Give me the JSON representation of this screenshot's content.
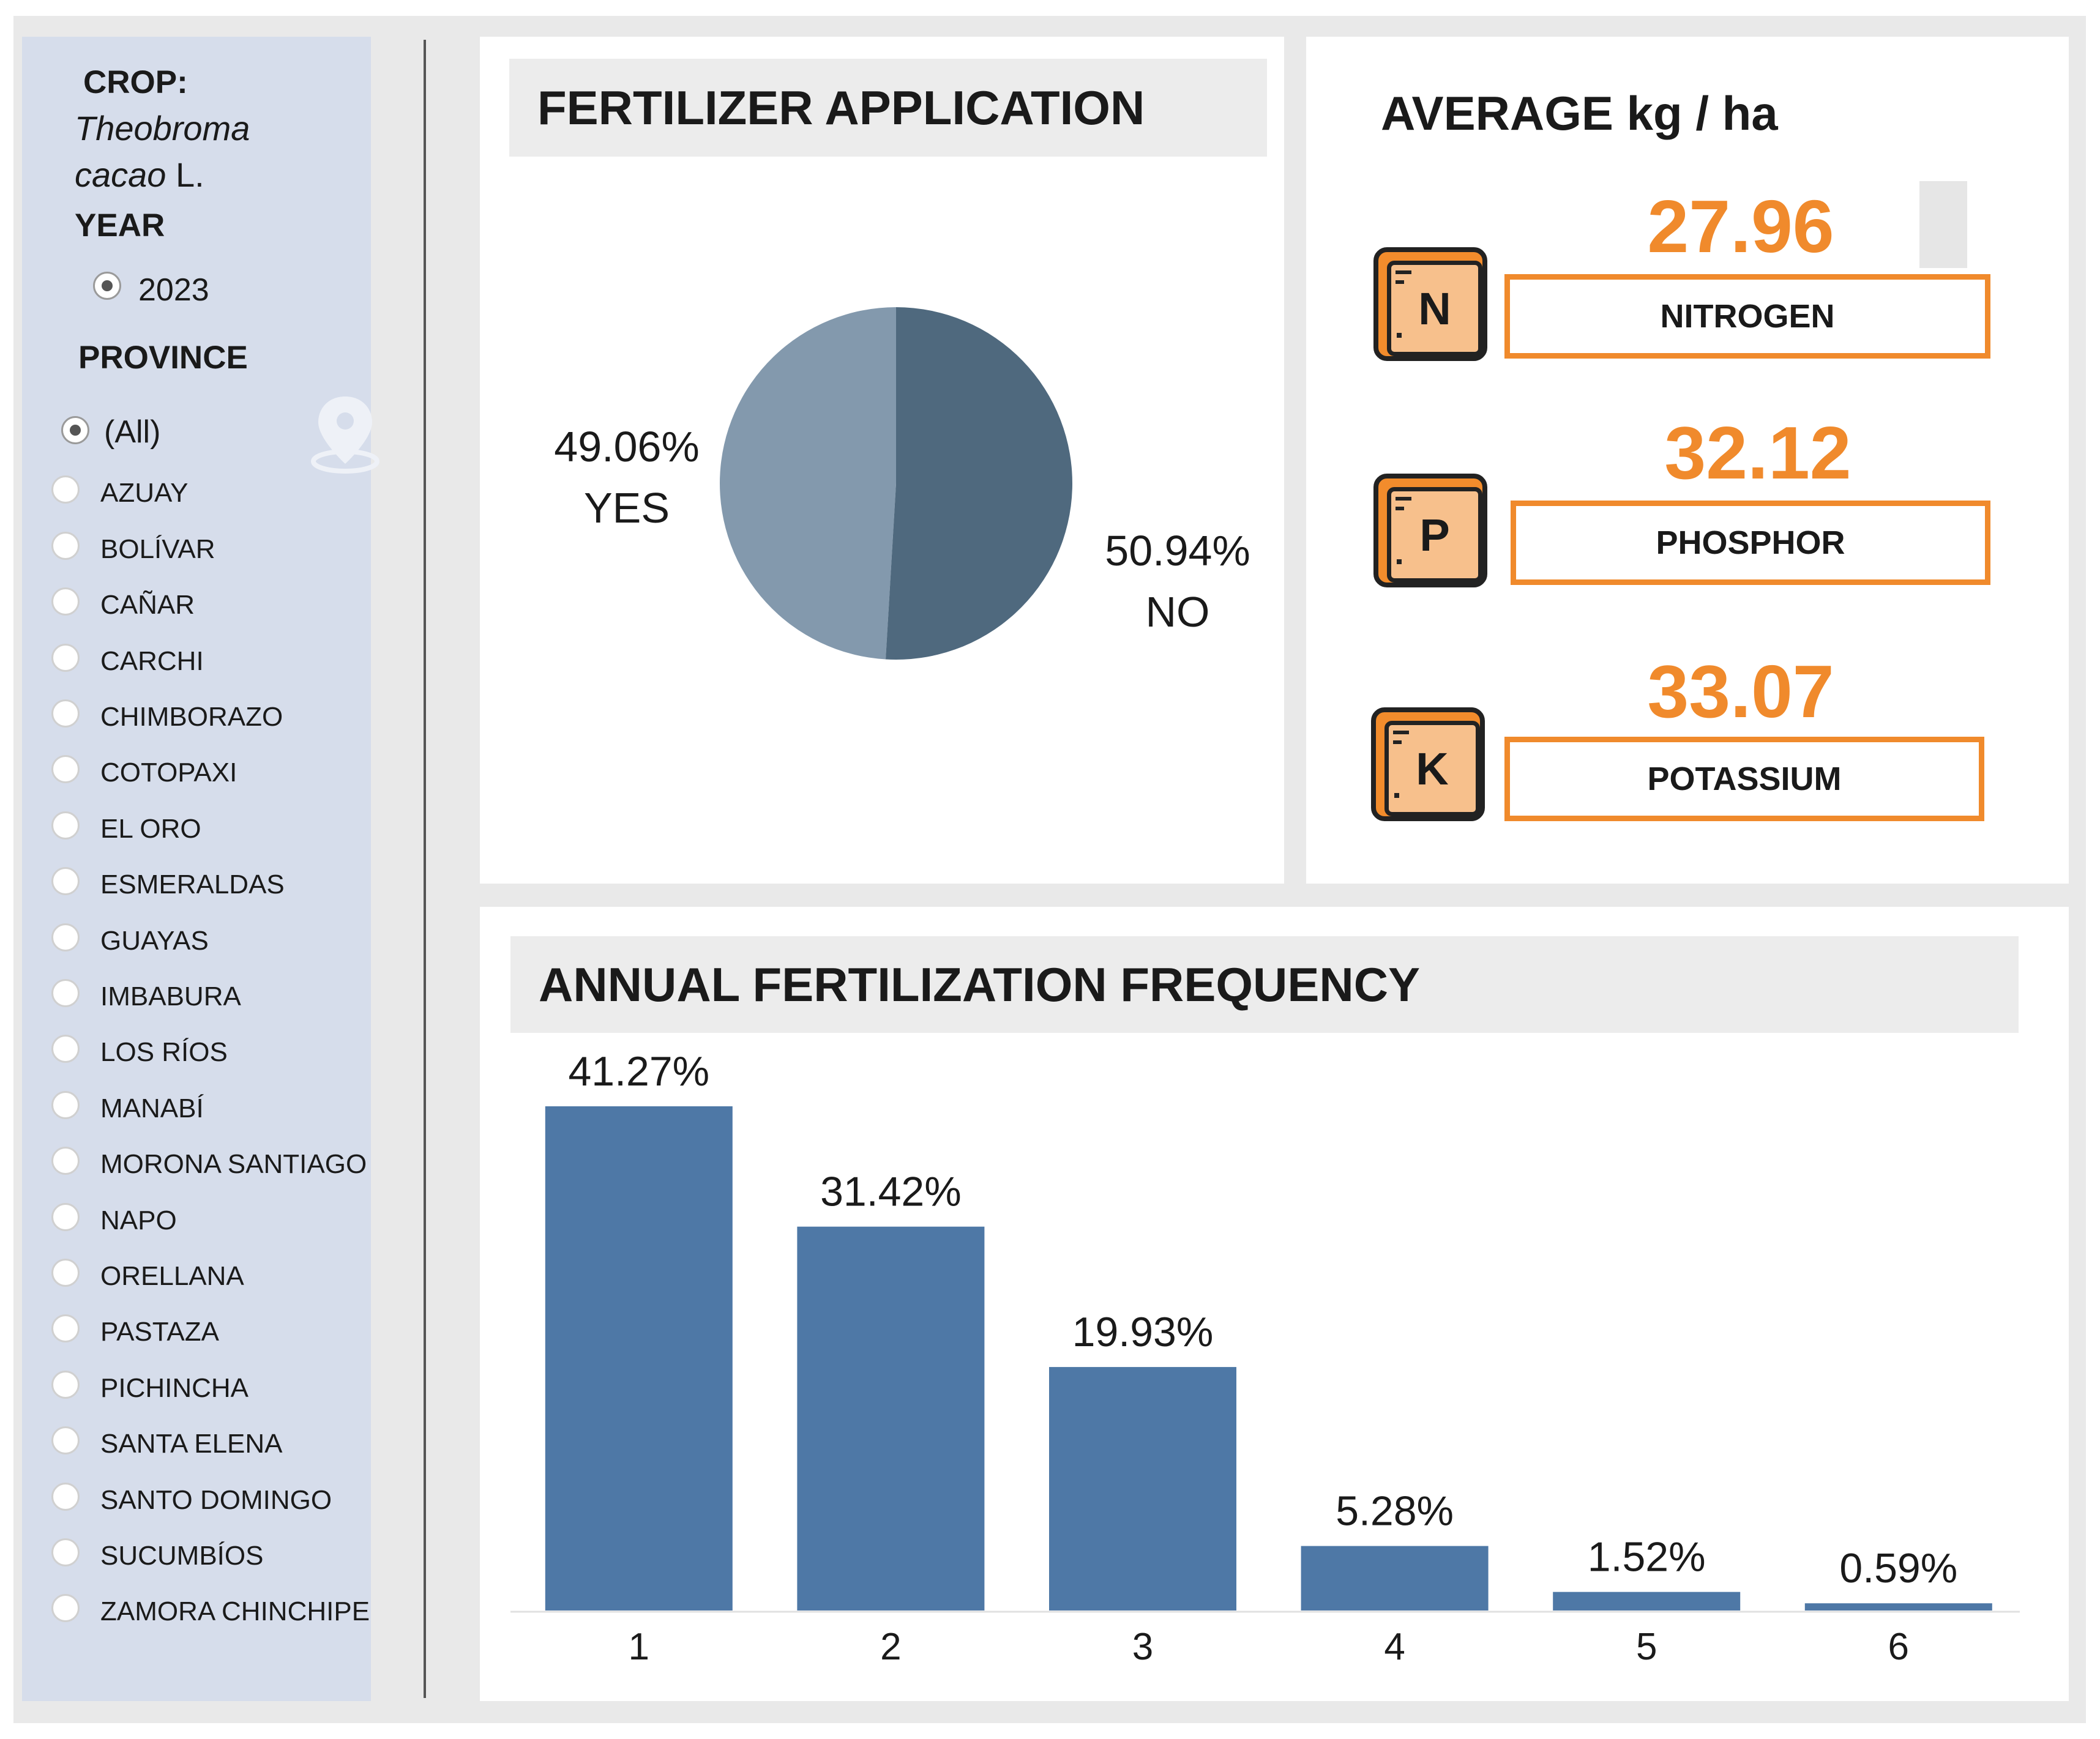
{
  "sidebar": {
    "crop_heading": "CROP:",
    "crop_name_italic_1": "Theobroma",
    "crop_name_italic_2": "cacao",
    "crop_name_suffix": " L.",
    "year_heading": "YEAR",
    "year_value": "2023",
    "province_heading": "PROVINCE",
    "provinces": [
      "(All)",
      "AZUAY",
      "BOLÍVAR",
      "CAÑAR",
      "CARCHI",
      "CHIMBORAZO",
      "COTOPAXI",
      "EL ORO",
      "ESMERALDAS",
      "GUAYAS",
      "IMBABURA",
      "LOS RÍOS",
      "MANABÍ",
      "MORONA SANTIAGO",
      "NAPO",
      "ORELLANA",
      "PASTAZA",
      "PICHINCHA",
      "SANTA ELENA",
      "SANTO DOMINGO",
      "SUCUMBÍOS",
      "ZAMORA CHINCHIPE"
    ],
    "selected_province": "(All)"
  },
  "fertilizer_application": {
    "title": "FERTILIZER APPLICATION",
    "yes_pct": "49.06%",
    "yes_label": "YES",
    "no_pct": "50.94%",
    "no_label": "NO"
  },
  "average": {
    "title": "AVERAGE kg / ha",
    "nutrients": [
      {
        "symbol": "N",
        "value": "27.96",
        "name": "NITROGEN"
      },
      {
        "symbol": "P",
        "value": "32.12",
        "name": "PHOSPHOR"
      },
      {
        "symbol": "K",
        "value": "33.07",
        "name": "POTASSIUM"
      }
    ]
  },
  "frequency": {
    "title": "ANNUAL FERTILIZATION FREQUENCY"
  },
  "colors": {
    "pie_yes": "#8399ad",
    "pie_no": "#4f697e",
    "bar": "#4e78a6",
    "accent_orange": "#f08a2c"
  },
  "chart_data": [
    {
      "type": "pie",
      "title": "FERTILIZER APPLICATION",
      "labels": [
        "YES",
        "NO"
      ],
      "values": [
        49.06,
        50.94
      ],
      "value_labels": [
        "49.06%",
        "50.94%"
      ]
    },
    {
      "type": "bar",
      "title": "ANNUAL FERTILIZATION FREQUENCY",
      "categories": [
        "1",
        "2",
        "3",
        "4",
        "5",
        "6"
      ],
      "values": [
        41.27,
        31.42,
        19.93,
        5.28,
        1.52,
        0.59
      ],
      "value_labels": [
        "41.27%",
        "31.42%",
        "19.93%",
        "5.28%",
        "1.52%",
        "0.59%"
      ],
      "xlabel": "",
      "ylabel": "",
      "ylim": [
        0,
        41.27
      ],
      "grid": false
    }
  ]
}
